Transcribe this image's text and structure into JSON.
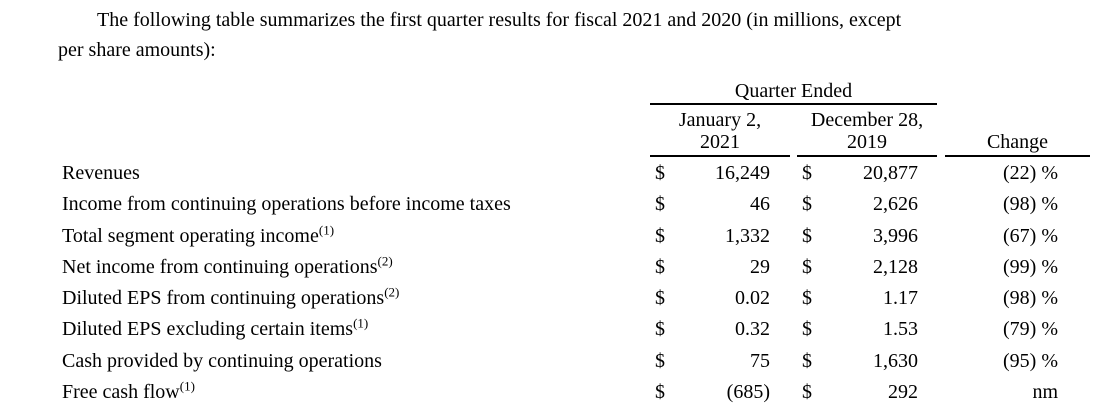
{
  "intro": {
    "line1": "The following table summarizes the first quarter results for fiscal 2021 and 2020 (in millions, except",
    "line2": "per share amounts):"
  },
  "table": {
    "group_header": "Quarter Ended",
    "currency_symbol": "$",
    "columns": {
      "col1": {
        "line1": "January 2,",
        "line2": "2021"
      },
      "col2": {
        "line1": "December 28,",
        "line2": "2019"
      },
      "change": "Change"
    },
    "rows": [
      {
        "label": "Revenues",
        "sup": "",
        "v1": "16,249",
        "v2": "20,877",
        "change": "(22) %"
      },
      {
        "label": "Income from continuing operations before income taxes",
        "sup": "",
        "v1": "46",
        "v2": "2,626",
        "change": "(98) %"
      },
      {
        "label": "Total segment operating income",
        "sup": "(1)",
        "v1": "1,332",
        "v2": "3,996",
        "change": "(67) %"
      },
      {
        "label": "Net income from continuing operations",
        "sup": "(2)",
        "v1": "29",
        "v2": "2,128",
        "change": "(99) %"
      },
      {
        "label": "Diluted EPS from continuing operations",
        "sup": "(2)",
        "v1": "0.02",
        "v2": "1.17",
        "change": "(98) %"
      },
      {
        "label": "Diluted EPS excluding certain items",
        "sup": "(1)",
        "v1": "0.32",
        "v2": "1.53",
        "change": "(79) %"
      },
      {
        "label": "Cash provided by continuing operations",
        "sup": "",
        "v1": "75",
        "v2": "1,630",
        "change": "(95) %"
      },
      {
        "label": "Free cash flow",
        "sup": "(1)",
        "v1": "(685)",
        "v2": "292",
        "change": "nm"
      }
    ]
  }
}
